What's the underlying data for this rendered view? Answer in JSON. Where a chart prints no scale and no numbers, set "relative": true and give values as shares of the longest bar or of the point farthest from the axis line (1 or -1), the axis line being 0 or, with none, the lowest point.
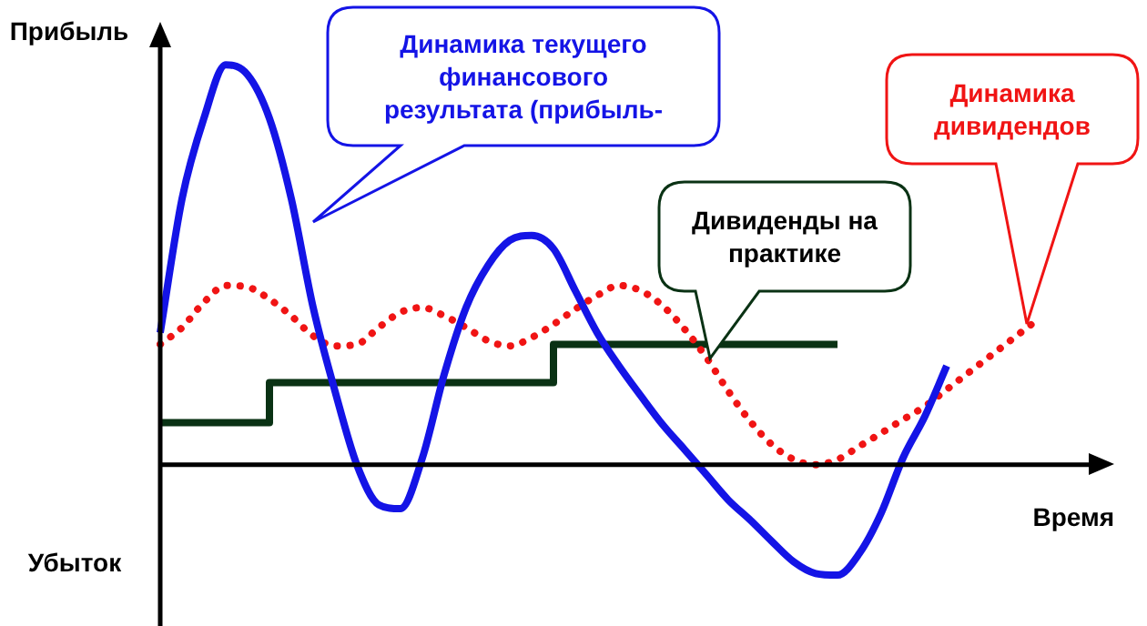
{
  "chart_data": {
    "type": "line",
    "relative": true,
    "ylabel": "Прибыль",
    "xlabel": "Время",
    "legend": false,
    "marker": "none",
    "categories": [
      null,
      null,
      null,
      null,
      null,
      null,
      null,
      null,
      null,
      null,
      null,
      null,
      null,
      null,
      null,
      null,
      null,
      null,
      null,
      null,
      null,
      null,
      null,
      null,
      null,
      null,
      null,
      null,
      null,
      null,
      null,
      null,
      null,
      null,
      null,
      null,
      null,
      null,
      null,
      null,
      null
    ],
    "series": [
      {
        "color": "#1414e6",
        "line_style": "solid",
        "values": [
          0.33,
          0.665,
          0.866,
          1,
          0.975,
          0.866,
          0.665,
          0.393,
          0.184,
          0,
          -0.1,
          -0.11,
          0.017,
          0.226,
          0.393,
          0.498,
          0.561,
          0.573,
          0.54,
          0.435,
          0.33,
          0.247,
          0.172,
          0.1,
          0.038,
          -0.025,
          -0.088,
          -0.138,
          -0.192,
          -0.243,
          -0.272,
          -0.276,
          -0.222,
          -0.121,
          0.017,
          0.121,
          0.247,
          null,
          null,
          null,
          null
        ]
      },
      {
        "color": "#f01414",
        "line_style": "dotted",
        "values": [
          0.301,
          0.343,
          0.406,
          0.448,
          0.444,
          0.414,
          0.372,
          0.322,
          0.297,
          0.301,
          0.343,
          0.381,
          0.393,
          0.372,
          0.343,
          0.31,
          0.297,
          0.318,
          0.351,
          0.389,
          0.423,
          0.448,
          0.435,
          0.397,
          0.339,
          0.268,
          0.184,
          0.109,
          0.05,
          0.013,
          0,
          0.013,
          0.046,
          0.079,
          0.113,
          0.146,
          0.188,
          0.23,
          0.272,
          0.314,
          0.356
        ]
      },
      {
        "type": "step",
        "color": "#0a3214",
        "line_style": "solid",
        "values": [
          0.105,
          0.105,
          0.105,
          0.105,
          0.105,
          0.205,
          0.205,
          0.205,
          0.205,
          0.205,
          0.205,
          0.205,
          0.205,
          0.205,
          0.205,
          0.205,
          0.205,
          0.205,
          0.301,
          0.301,
          0.301,
          0.301,
          0.301,
          0.301,
          0.301,
          0.301,
          0.301,
          0.301,
          0.301,
          0.301,
          0.301,
          0.301,
          null,
          null,
          null,
          null,
          null,
          null,
          null,
          null,
          null
        ]
      }
    ],
    "annotations": [
      "Динамика текущего финансового результата (прибыль-",
      "Динамика дивидендов",
      "Дивиденды на практике",
      "Убыток"
    ]
  }
}
